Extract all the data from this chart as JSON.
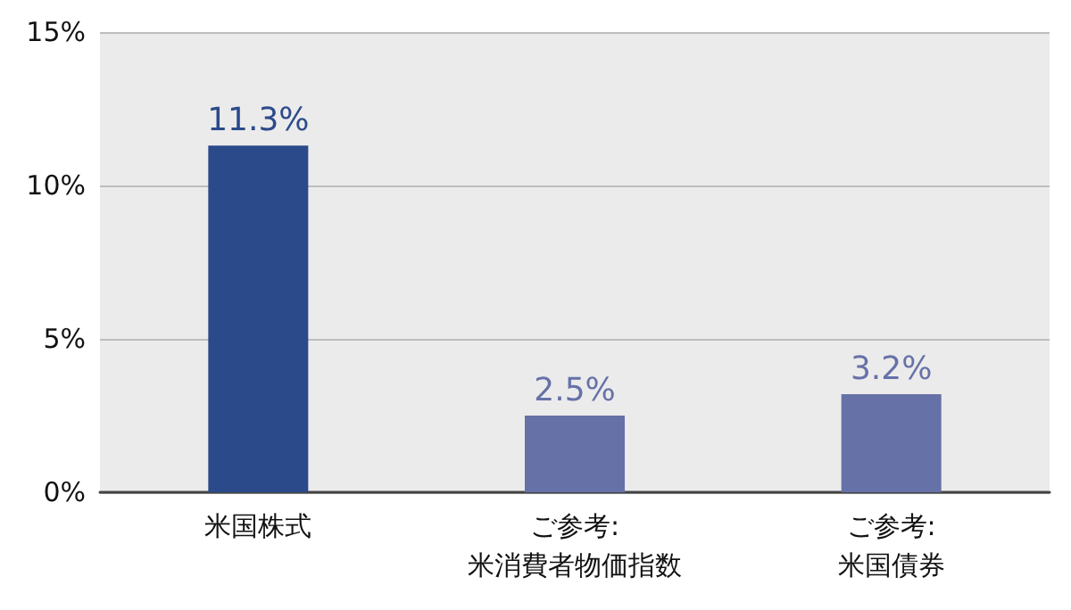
{
  "chart_data": {
    "type": "bar",
    "categories": [
      "米国株式",
      "ご参考:\n米消費者物価指数",
      "ご参考:\n米国債券"
    ],
    "values": [
      11.3,
      2.5,
      3.2
    ],
    "colors": [
      "#2b4a8a",
      "#6671a8",
      "#6671a8"
    ],
    "value_labels": [
      "11.3%",
      "2.5%",
      "3.2%"
    ],
    "ylim": [
      0,
      15
    ],
    "yticks": [
      {
        "value": 0,
        "label": "0%"
      },
      {
        "value": 5,
        "label": "5%"
      },
      {
        "value": 10,
        "label": "10%"
      },
      {
        "value": 15,
        "label": "15%"
      }
    ],
    "grid": "y"
  }
}
